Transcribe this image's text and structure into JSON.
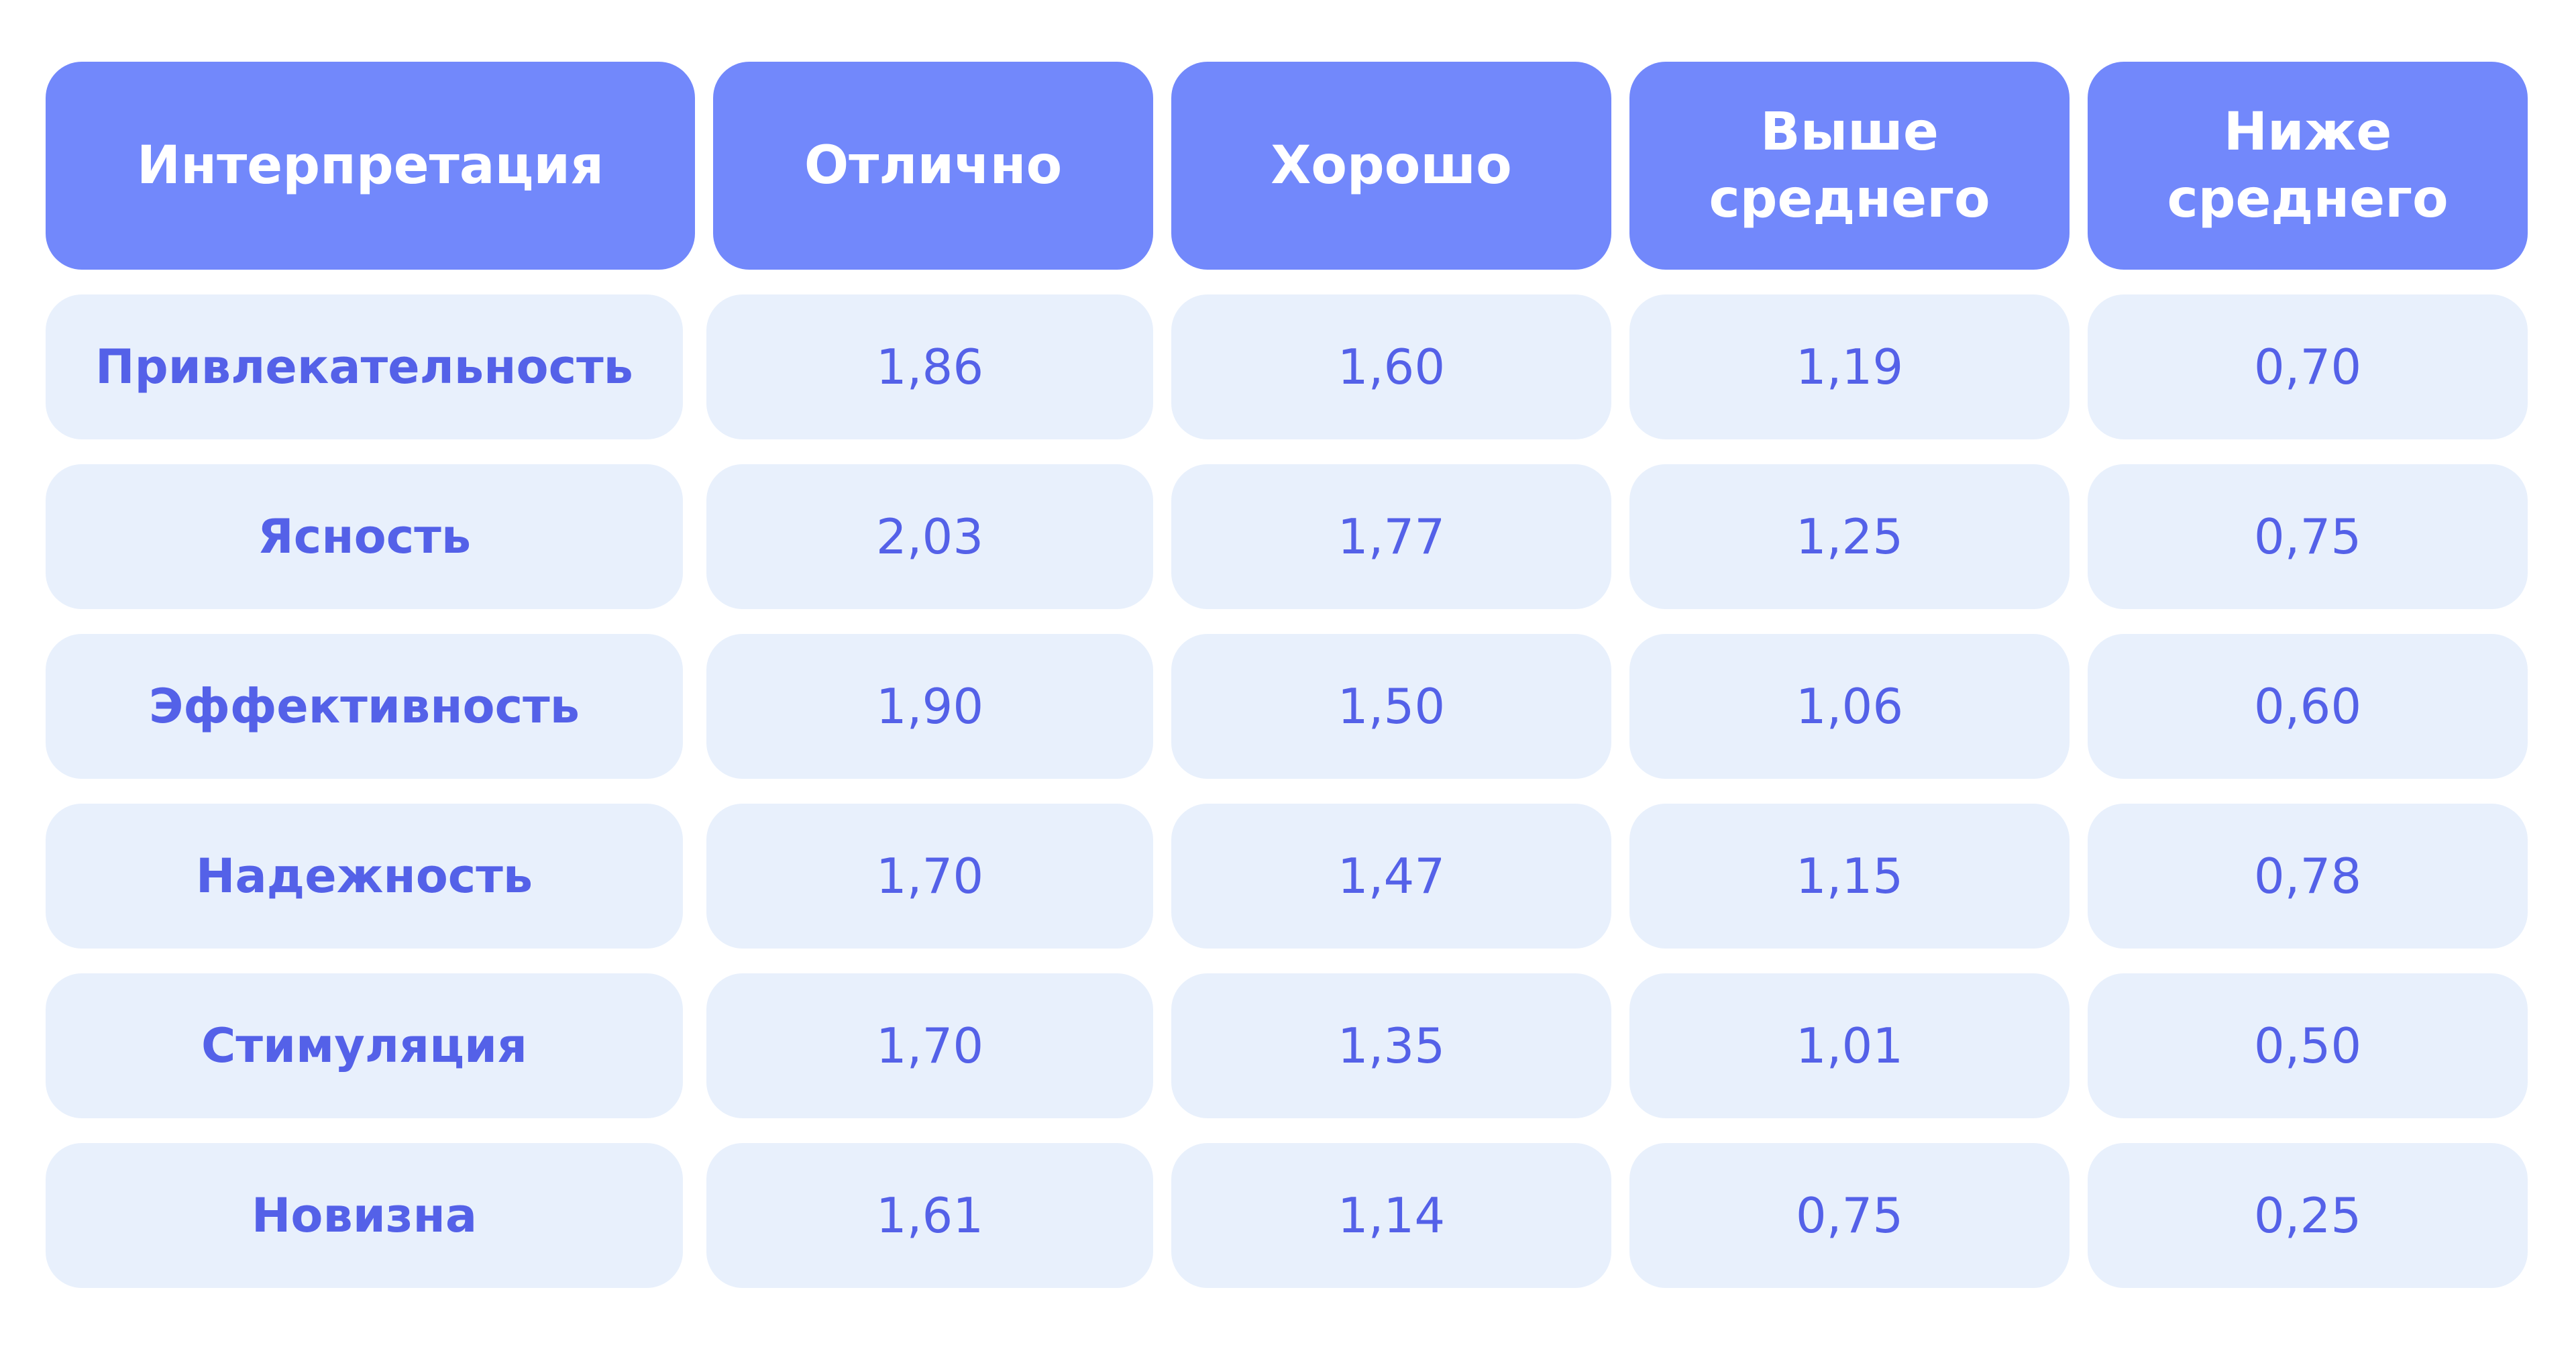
{
  "table": {
    "columns": [
      "Интерпретация",
      "Отлично",
      "Хорошо",
      "Выше среднего",
      "Ниже среднего"
    ],
    "rows": [
      {
        "label": "Привлекательность",
        "values": [
          "1,86",
          "1,60",
          "1,19",
          "0,70"
        ]
      },
      {
        "label": "Ясность",
        "values": [
          "2,03",
          "1,77",
          "1,25",
          "0,75"
        ]
      },
      {
        "label": "Эффективность",
        "values": [
          "1,90",
          "1,50",
          "1,06",
          "0,60"
        ]
      },
      {
        "label": "Надежность",
        "values": [
          "1,70",
          "1,47",
          "1,15",
          "0,78"
        ]
      },
      {
        "label": "Стимуляция",
        "values": [
          "1,70",
          "1,35",
          "1,01",
          "0,50"
        ]
      },
      {
        "label": "Новизна",
        "values": [
          "1,61",
          "1,14",
          "0,75",
          "0,25"
        ]
      }
    ]
  },
  "colors": {
    "header_bg": "#7288fb",
    "cell_bg": "#e8f0fc",
    "text_accent": "#5461e8"
  }
}
